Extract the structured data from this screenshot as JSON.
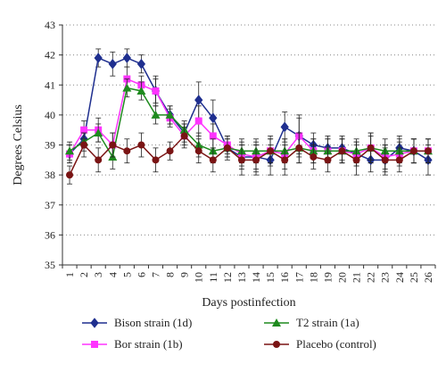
{
  "chart_data": {
    "type": "line",
    "title": "",
    "xlabel": "Days postinfection",
    "ylabel": "Degrees Celsius",
    "ylim": [
      35,
      43
    ],
    "yticks": [
      35,
      36,
      37,
      38,
      39,
      40,
      41,
      42,
      43
    ],
    "x": [
      1,
      2,
      3,
      4,
      5,
      6,
      7,
      8,
      9,
      10,
      11,
      12,
      13,
      14,
      15,
      16,
      17,
      18,
      19,
      20,
      21,
      22,
      23,
      24,
      25,
      26
    ],
    "grid": "horizontal dotted",
    "legend_position": "bottom",
    "series": [
      {
        "name": "Bison strain (1d)",
        "color": "#1f2f8f",
        "marker": "diamond",
        "values": [
          38.7,
          39.2,
          41.9,
          41.7,
          41.9,
          41.7,
          40.8,
          40.0,
          39.4,
          40.5,
          39.9,
          38.9,
          38.6,
          38.6,
          38.5,
          39.6,
          39.3,
          39.0,
          38.9,
          38.9,
          38.7,
          38.5,
          38.5,
          38.9,
          38.8,
          38.5
        ],
        "errors": [
          0.3,
          0.3,
          0.3,
          0.4,
          0.3,
          0.3,
          0.5,
          0.3,
          0.3,
          0.6,
          0.6,
          0.3,
          0.4,
          0.5,
          0.5,
          0.5,
          0.7,
          0.4,
          0.4,
          0.4,
          0.4,
          0.4,
          0.4,
          0.4,
          0.4,
          0.5
        ]
      },
      {
        "name": "Bor strain (1b)",
        "color": "#ff33ff",
        "marker": "square",
        "values": [
          38.7,
          39.5,
          39.5,
          39.0,
          41.2,
          41.0,
          40.8,
          39.9,
          39.3,
          39.8,
          39.3,
          39.0,
          38.7,
          38.6,
          38.8,
          38.7,
          39.3,
          38.8,
          38.8,
          38.8,
          38.7,
          38.9,
          38.6,
          38.7,
          38.8,
          38.8
        ],
        "errors": [
          0.3,
          0.3,
          0.4,
          0.4,
          0.4,
          0.3,
          0.4,
          0.3,
          0.3,
          0.5,
          0.4,
          0.3,
          0.4,
          0.4,
          0.4,
          0.5,
          0.6,
          0.4,
          0.4,
          0.4,
          0.4,
          0.5,
          0.4,
          0.4,
          0.4,
          0.4
        ]
      },
      {
        "name": "T2 strain (1a)",
        "color": "#1e8a1e",
        "marker": "triangle",
        "values": [
          38.8,
          39.1,
          39.4,
          38.6,
          40.9,
          40.8,
          40.0,
          40.0,
          39.5,
          39.0,
          38.8,
          38.9,
          38.8,
          38.8,
          38.8,
          38.8,
          38.9,
          38.8,
          38.8,
          38.8,
          38.8,
          38.9,
          38.8,
          38.8,
          38.8,
          38.8
        ],
        "errors": [
          0.3,
          0.3,
          0.3,
          0.4,
          0.3,
          0.3,
          0.3,
          0.3,
          0.3,
          0.4,
          0.4,
          0.3,
          0.4,
          0.4,
          0.4,
          0.4,
          0.5,
          0.4,
          0.4,
          0.4,
          0.4,
          0.4,
          0.4,
          0.4,
          0.4,
          0.4
        ]
      },
      {
        "name": "Placebo (control)",
        "color": "#7a1414",
        "marker": "circle",
        "values": [
          38.0,
          39.0,
          38.5,
          39.0,
          38.8,
          39.0,
          38.5,
          38.8,
          39.3,
          38.8,
          38.5,
          38.9,
          38.5,
          38.5,
          38.8,
          38.5,
          38.9,
          38.6,
          38.5,
          38.8,
          38.5,
          38.9,
          38.5,
          38.5,
          38.8,
          38.8
        ],
        "errors": [
          0.3,
          0.4,
          0.4,
          0.4,
          0.4,
          0.4,
          0.4,
          0.3,
          0.4,
          0.4,
          0.4,
          0.4,
          0.5,
          0.5,
          0.5,
          0.5,
          0.5,
          0.4,
          0.4,
          0.4,
          0.5,
          0.5,
          0.5,
          0.4,
          0.4,
          0.4
        ]
      }
    ]
  }
}
